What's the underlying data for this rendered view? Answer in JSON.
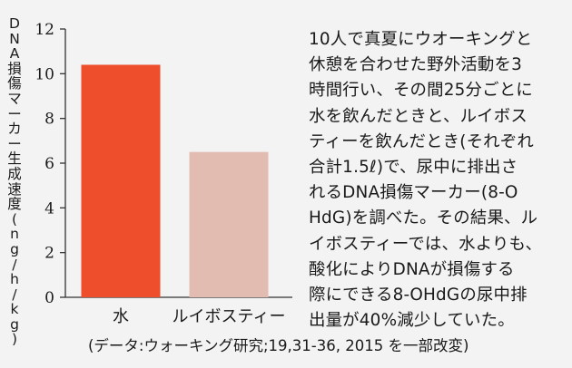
{
  "chart_data": {
    "type": "bar",
    "categories": [
      "水",
      "ルイボスティー"
    ],
    "values": [
      10.4,
      6.5
    ],
    "ylim": [
      0,
      12
    ],
    "yticks": [
      "0",
      "2",
      "4",
      "6",
      "8",
      "10",
      "12"
    ],
    "ylabel": "DNA損傷マーカー生成速度(ng/h/kg)",
    "title": "",
    "xlabel": "",
    "colors": [
      "#ef4e2c",
      "#e2bcb1"
    ]
  },
  "description_lines": [
    "10人で真夏にウオーキングと",
    "休憩を合わせた野外活動を3",
    "時間行い、その間25分ごとに",
    "水を飲んだときと、ルイボス",
    "ティーを飲んだとき(それぞれ",
    "合計1.5ℓ)で、尿中に排出さ",
    "れるDNA損傷マーカー(8-O",
    "HdG)を調べた。その結果、ル",
    "イボスティーでは、水よりも、",
    "酸化によりDNAが損傷する",
    "際にできる8-OHdGの尿中排",
    "出量が40%減少していた。"
  ],
  "source": "(データ:ウォーキング研究;19,31-36, 2015 を一部改変)"
}
